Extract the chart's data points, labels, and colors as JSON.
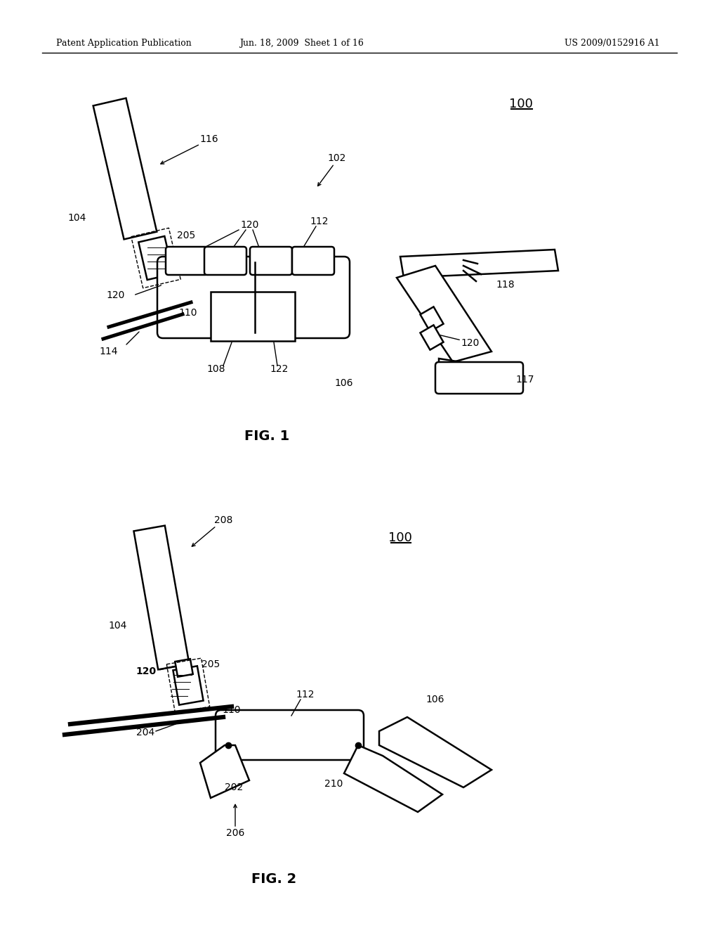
{
  "bg_color": "#ffffff",
  "header_left": "Patent Application Publication",
  "header_center": "Jun. 18, 2009  Sheet 1 of 16",
  "header_right": "US 2009/0152916 A1",
  "fig1_label": "FIG. 1",
  "fig2_label": "FIG. 2",
  "lc": "#000000",
  "lw": 1.8,
  "header_fontsize": 9,
  "ref_fontsize": 10,
  "fig_label_fontsize": 14
}
